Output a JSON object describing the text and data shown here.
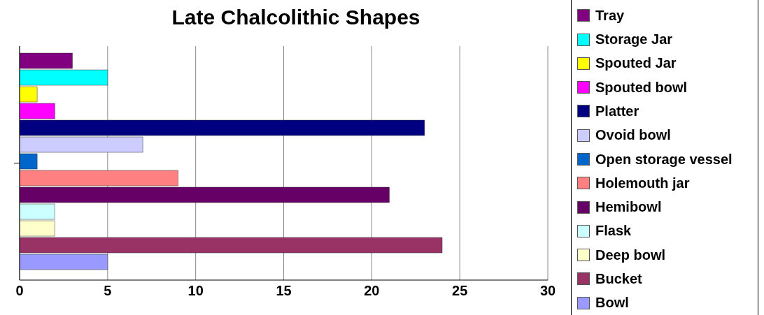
{
  "chart_data": {
    "type": "bar",
    "title": "Late Chalcolithic Shapes",
    "orientation": "horizontal",
    "categories": [
      null
    ],
    "xlim": [
      0,
      30
    ],
    "xticks": [
      0,
      5,
      10,
      15,
      20,
      25,
      30
    ],
    "grid": "x",
    "legend": "right",
    "series": [
      {
        "name": "Tray",
        "color": "#800080",
        "values": [
          3
        ]
      },
      {
        "name": "Storage Jar",
        "color": "#00ffff",
        "values": [
          5
        ]
      },
      {
        "name": "Spouted Jar",
        "color": "#ffff00",
        "values": [
          1
        ]
      },
      {
        "name": "Spouted bowl",
        "color": "#ff00ff",
        "values": [
          2
        ]
      },
      {
        "name": "Platter",
        "color": "#000080",
        "values": [
          23
        ]
      },
      {
        "name": "Ovoid bowl",
        "color": "#ccccff",
        "values": [
          7
        ]
      },
      {
        "name": "Open storage vessel",
        "color": "#0066cc",
        "values": [
          1
        ]
      },
      {
        "name": "Holemouth jar",
        "color": "#ff8080",
        "values": [
          9
        ]
      },
      {
        "name": "Hemibowl",
        "color": "#660066",
        "values": [
          21
        ]
      },
      {
        "name": "Flask",
        "color": "#ccffff",
        "values": [
          2
        ]
      },
      {
        "name": "Deep bowl",
        "color": "#ffffcc",
        "values": [
          2
        ]
      },
      {
        "name": "Bucket",
        "color": "#993366",
        "values": [
          24
        ]
      },
      {
        "name": "Bowl",
        "color": "#9999ff",
        "values": [
          5
        ]
      }
    ]
  }
}
